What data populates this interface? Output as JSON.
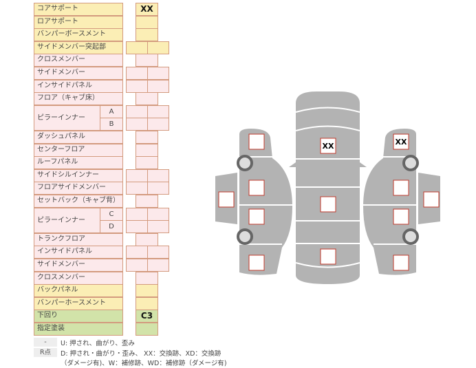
{
  "rows": [
    {
      "label": "コアサポート",
      "color": "y",
      "type": "single",
      "value": "XX"
    },
    {
      "label": "ロアサポート",
      "color": "y",
      "type": "single",
      "value": ""
    },
    {
      "label": "バンパーボースメント",
      "color": "y",
      "type": "single",
      "value": ""
    },
    {
      "label": "サイドメンバー突起部",
      "color": "y",
      "type": "pair",
      "value": ""
    },
    {
      "label": "クロスメンバー",
      "color": "p",
      "type": "single",
      "value": ""
    },
    {
      "label": "サイドメンバー",
      "color": "p",
      "type": "pair",
      "value": ""
    },
    {
      "label": "インサイドパネル",
      "color": "p",
      "type": "pair",
      "value": ""
    },
    {
      "label": "フロア（キャブ床）",
      "color": "p",
      "type": "single",
      "value": ""
    },
    {
      "label": "ピラーインナー",
      "sub": "A",
      "color": "p",
      "type": "pair",
      "value": ""
    },
    {
      "label": "",
      "sub": "B",
      "color": "p",
      "type": "pair",
      "value": ""
    },
    {
      "label": "ダッシュパネル",
      "color": "p",
      "type": "single",
      "value": ""
    },
    {
      "label": "センターフロア",
      "color": "p",
      "type": "single",
      "value": ""
    },
    {
      "label": "ルーフパネル",
      "color": "p",
      "type": "single",
      "value": ""
    },
    {
      "label": "サイドシルインナー",
      "color": "p",
      "type": "pair",
      "value": ""
    },
    {
      "label": "フロアサイドメンバー",
      "color": "p",
      "type": "pair",
      "value": ""
    },
    {
      "label": "セットバック（キャブ背）",
      "color": "p",
      "type": "single",
      "value": ""
    },
    {
      "label": "ピラーインナー",
      "sub": "C",
      "color": "p",
      "type": "pair",
      "value": ""
    },
    {
      "label": "",
      "sub": "D",
      "color": "p",
      "type": "pair",
      "value": ""
    },
    {
      "label": "トランクフロア",
      "color": "p",
      "type": "single",
      "value": ""
    },
    {
      "label": "インサイドパネル",
      "color": "p",
      "type": "pair",
      "value": ""
    },
    {
      "label": "サイドメンバー",
      "color": "p",
      "type": "pair",
      "value": ""
    },
    {
      "label": "クロスメンバー",
      "color": "p",
      "type": "single",
      "value": ""
    },
    {
      "label": "バックパネル",
      "color": "y",
      "type": "single",
      "value": ""
    },
    {
      "label": "バンパーホースメント",
      "color": "y",
      "type": "single",
      "value": ""
    },
    {
      "label": "下回り",
      "color": "g",
      "type": "single",
      "value": "C3"
    },
    {
      "label": "指定塗装",
      "color": "g",
      "type": "single",
      "value": ""
    }
  ],
  "legend": {
    "dash": "-",
    "dash_text": "U: 押され、曲がり、歪み",
    "rpoint": "R点",
    "rpoint_text1": "D: 押され・曲がり・歪み、 XX：交換跡、XD：交換跡",
    "rpoint_text2": "（ダメージ有)、W：補修跡、WD：補修跡（ダメージ有)"
  },
  "diagram": {
    "marks": {
      "left_front": "",
      "left_mid1": "",
      "left_mid2": "",
      "left_rear": "",
      "left_door": "",
      "roof_front": "XX",
      "roof_mid": "",
      "roof_rear": "",
      "right_front": "XX",
      "right_mid1": "",
      "right_mid2": "",
      "right_rear": "",
      "right_door": ""
    },
    "body_color": "#b3b3b3",
    "mark_border": "#c0392b"
  }
}
